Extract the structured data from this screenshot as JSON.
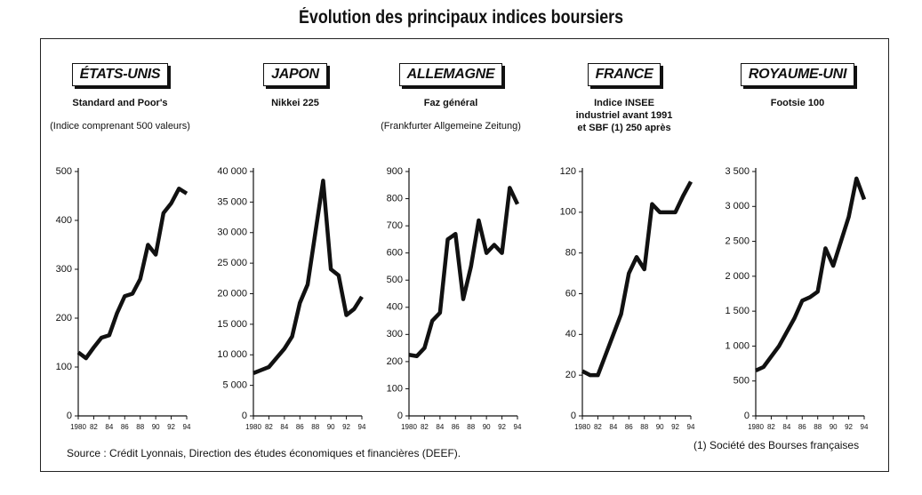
{
  "title": "Évolution des principaux indices boursiers",
  "source": "Source : Crédit Lyonnais, Direction des études économiques et financières (DEEF).",
  "footnote": "(1) Société des Bourses françaises",
  "chart_data": [
    {
      "type": "line",
      "title": "ÉTATS-UNIS",
      "subtitle": [
        "Standard and Poor's"
      ],
      "note": "(Indice comprenant 500 valeurs)",
      "x": [
        1980,
        1981,
        1982,
        1983,
        1984,
        1985,
        1986,
        1987,
        1988,
        1989,
        1990,
        1991,
        1992,
        1993,
        1994
      ],
      "values": [
        130,
        118,
        140,
        160,
        165,
        210,
        245,
        250,
        280,
        350,
        330,
        415,
        435,
        465,
        455
      ],
      "color": "#111",
      "xlim": [
        1980,
        1994
      ],
      "xticks": [
        1980,
        {
          "value": 1982,
          "label": "82"
        },
        {
          "value": 1984,
          "label": "84"
        },
        {
          "value": 1986,
          "label": "86"
        },
        {
          "value": 1988,
          "label": "88"
        },
        {
          "value": 1990,
          "label": "90"
        },
        {
          "value": 1992,
          "label": "92"
        },
        {
          "value": 1994,
          "label": "94"
        }
      ],
      "ylim": [
        0,
        500
      ],
      "yticks": [
        0,
        100,
        200,
        300,
        400,
        500
      ]
    },
    {
      "type": "line",
      "title": "JAPON",
      "subtitle": [
        "Nikkei 225"
      ],
      "x": [
        1980,
        1981,
        1982,
        1983,
        1984,
        1985,
        1986,
        1987,
        1988,
        1989,
        1990,
        1991,
        1992,
        1993,
        1994
      ],
      "values": [
        7000,
        7500,
        8000,
        9500,
        11000,
        13000,
        18500,
        21500,
        30000,
        38500,
        24000,
        23000,
        16500,
        17500,
        19500
      ],
      "color": "#111",
      "xlim": [
        1980,
        1994
      ],
      "xticks": [
        1980,
        {
          "value": 1982,
          "label": "82"
        },
        {
          "value": 1984,
          "label": "84"
        },
        {
          "value": 1986,
          "label": "86"
        },
        {
          "value": 1988,
          "label": "88"
        },
        {
          "value": 1990,
          "label": "90"
        },
        {
          "value": 1992,
          "label": "92"
        },
        {
          "value": 1994,
          "label": "94"
        }
      ],
      "ylim": [
        0,
        40000
      ],
      "yticks": [
        0,
        {
          "value": 5000,
          "label": "5 000"
        },
        {
          "value": 10000,
          "label": "10 000"
        },
        {
          "value": 15000,
          "label": "15 000"
        },
        {
          "value": 20000,
          "label": "20 000"
        },
        {
          "value": 25000,
          "label": "25 000"
        },
        {
          "value": 30000,
          "label": "30 000"
        },
        {
          "value": 35000,
          "label": "35 000"
        },
        {
          "value": 40000,
          "label": "40 000"
        }
      ]
    },
    {
      "type": "line",
      "title": "ALLEMAGNE",
      "subtitle": [
        "Faz général"
      ],
      "note": "(Frankfurter Allgemeine Zeitung)",
      "x": [
        1980,
        1981,
        1982,
        1983,
        1984,
        1985,
        1986,
        1987,
        1988,
        1989,
        1990,
        1991,
        1992,
        1993,
        1994
      ],
      "values": [
        225,
        220,
        250,
        350,
        380,
        650,
        670,
        430,
        550,
        720,
        600,
        630,
        600,
        840,
        780
      ],
      "color": "#111",
      "xlim": [
        1980,
        1994
      ],
      "xticks": [
        1980,
        {
          "value": 1982,
          "label": "82"
        },
        {
          "value": 1984,
          "label": "84"
        },
        {
          "value": 1986,
          "label": "86"
        },
        {
          "value": 1988,
          "label": "88"
        },
        {
          "value": 1990,
          "label": "90"
        },
        {
          "value": 1992,
          "label": "92"
        },
        {
          "value": 1994,
          "label": "94"
        }
      ],
      "ylim": [
        0,
        900
      ],
      "yticks": [
        0,
        100,
        200,
        300,
        400,
        500,
        600,
        700,
        800,
        900
      ]
    },
    {
      "type": "line",
      "title": "FRANCE",
      "subtitle": [
        "Indice INSEE",
        "industriel avant 1991",
        "et SBF (1) 250 après"
      ],
      "x": [
        1980,
        1981,
        1982,
        1983,
        1984,
        1985,
        1986,
        1987,
        1988,
        1989,
        1990,
        1991,
        1992,
        1993,
        1994
      ],
      "values": [
        22,
        20,
        20,
        30,
        40,
        50,
        70,
        78,
        72,
        104,
        100,
        100,
        100,
        108,
        115
      ],
      "color": "#111",
      "xlim": [
        1980,
        1994
      ],
      "xticks": [
        1980,
        {
          "value": 1982,
          "label": "82"
        },
        {
          "value": 1984,
          "label": "84"
        },
        {
          "value": 1986,
          "label": "86"
        },
        {
          "value": 1988,
          "label": "88"
        },
        {
          "value": 1990,
          "label": "90"
        },
        {
          "value": 1992,
          "label": "92"
        },
        {
          "value": 1994,
          "label": "94"
        }
      ],
      "ylim": [
        0,
        120
      ],
      "yticks": [
        0,
        20,
        40,
        60,
        80,
        100,
        120
      ]
    },
    {
      "type": "line",
      "title": "ROYAUME-UNI",
      "subtitle": [
        "Footsie 100"
      ],
      "x": [
        1980,
        1981,
        1982,
        1983,
        1984,
        1985,
        1986,
        1987,
        1988,
        1989,
        1990,
        1991,
        1992,
        1993,
        1994
      ],
      "values": [
        650,
        700,
        850,
        1000,
        1200,
        1400,
        1650,
        1700,
        1780,
        2400,
        2150,
        2500,
        2850,
        3400,
        3100
      ],
      "color": "#111",
      "xlim": [
        1980,
        1994
      ],
      "xticks": [
        1980,
        {
          "value": 1982,
          "label": "82"
        },
        {
          "value": 1984,
          "label": "84"
        },
        {
          "value": 1986,
          "label": "86"
        },
        {
          "value": 1988,
          "label": "88"
        },
        {
          "value": 1990,
          "label": "90"
        },
        {
          "value": 1992,
          "label": "92"
        },
        {
          "value": 1994,
          "label": "94"
        }
      ],
      "ylim": [
        0,
        3500
      ],
      "yticks": [
        0,
        500,
        {
          "value": 1000,
          "label": "1 000"
        },
        {
          "value": 1500,
          "label": "1 500"
        },
        {
          "value": 2000,
          "label": "2 000"
        },
        {
          "value": 2500,
          "label": "2 500"
        },
        {
          "value": 3000,
          "label": "3 000"
        },
        {
          "value": 3500,
          "label": "3 500"
        }
      ]
    }
  ]
}
